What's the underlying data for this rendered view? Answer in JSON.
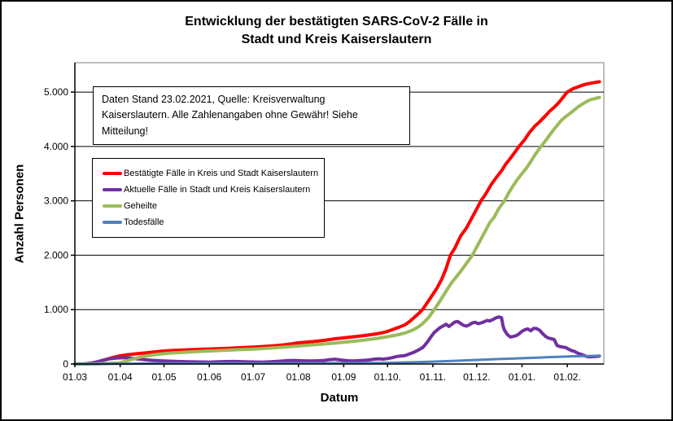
{
  "header": {
    "title_line1": "Entwicklung der bestätigten SARS-CoV-2 Fälle in",
    "title_line2": "Stadt und Kreis Kaiserslautern"
  },
  "infobox": {
    "line1": "Daten Stand 23.02.2021, Quelle: Kreisverwaltung",
    "line2": "Kaiserslautern. Alle Zahlenangaben ohne Gewähr! Siehe Mitteilung!"
  },
  "chart_data": {
    "type": "line",
    "title": "Entwicklung der bestätigten SARS-CoV-2 Fälle in Stadt und Kreis Kaiserslautern",
    "xlabel": "Datum",
    "ylabel": "Anzahl Personen",
    "x_unit": "days since 01.03.2020",
    "xlim": [
      0,
      362
    ],
    "ylim": [
      0,
      5540
    ],
    "grid": "horizontal",
    "legend_position": "inside-upper-left",
    "yticks": [
      {
        "value": 0,
        "label": "0"
      },
      {
        "value": 1000,
        "label": "1.000"
      },
      {
        "value": 2000,
        "label": "2.000"
      },
      {
        "value": 3000,
        "label": "3.000"
      },
      {
        "value": 4000,
        "label": "4.000"
      },
      {
        "value": 5000,
        "label": "5.000"
      }
    ],
    "xticks": [
      {
        "day": 0,
        "label": "01.03"
      },
      {
        "day": 31,
        "label": "01.04"
      },
      {
        "day": 61,
        "label": "01.05"
      },
      {
        "day": 92,
        "label": "01.06"
      },
      {
        "day": 122,
        "label": "01.07"
      },
      {
        "day": 153,
        "label": "01.08"
      },
      {
        "day": 184,
        "label": "01.09"
      },
      {
        "day": 214,
        "label": "01.10."
      },
      {
        "day": 245,
        "label": "01.11."
      },
      {
        "day": 275,
        "label": "01.12."
      },
      {
        "day": 306,
        "label": "01.01."
      },
      {
        "day": 337,
        "label": "01.02."
      }
    ],
    "series": [
      {
        "name": "Bestätigte Fälle in Kreis und Stadt Kaiserslautern",
        "color": "#FF0000",
        "width": 4,
        "points": [
          [
            0,
            0
          ],
          [
            6,
            2
          ],
          [
            10,
            8
          ],
          [
            14,
            25
          ],
          [
            18,
            60
          ],
          [
            22,
            90
          ],
          [
            26,
            118
          ],
          [
            31,
            150
          ],
          [
            36,
            170
          ],
          [
            41,
            185
          ],
          [
            47,
            200
          ],
          [
            54,
            222
          ],
          [
            61,
            240
          ],
          [
            68,
            250
          ],
          [
            75,
            258
          ],
          [
            82,
            266
          ],
          [
            92,
            276
          ],
          [
            99,
            283
          ],
          [
            106,
            291
          ],
          [
            113,
            300
          ],
          [
            122,
            311
          ],
          [
            129,
            322
          ],
          [
            136,
            336
          ],
          [
            143,
            352
          ],
          [
            148,
            370
          ],
          [
            153,
            390
          ],
          [
            158,
            401
          ],
          [
            164,
            416
          ],
          [
            171,
            436
          ],
          [
            177,
            460
          ],
          [
            184,
            481
          ],
          [
            191,
            502
          ],
          [
            198,
            523
          ],
          [
            205,
            548
          ],
          [
            210,
            572
          ],
          [
            214,
            600
          ],
          [
            218,
            638
          ],
          [
            222,
            678
          ],
          [
            226,
            722
          ],
          [
            229,
            780
          ],
          [
            232,
            850
          ],
          [
            235,
            922
          ],
          [
            238,
            1002
          ],
          [
            241,
            1120
          ],
          [
            245,
            1280
          ],
          [
            248,
            1405
          ],
          [
            251,
            1556
          ],
          [
            254,
            1752
          ],
          [
            257,
            2001
          ],
          [
            260,
            2130
          ],
          [
            264,
            2352
          ],
          [
            268,
            2502
          ],
          [
            271,
            2650
          ],
          [
            275,
            2851
          ],
          [
            278,
            3003
          ],
          [
            281,
            3120
          ],
          [
            285,
            3302
          ],
          [
            289,
            3450
          ],
          [
            292,
            3552
          ],
          [
            295,
            3680
          ],
          [
            298,
            3781
          ],
          [
            301,
            3890
          ],
          [
            304,
            4002
          ],
          [
            308,
            4131
          ],
          [
            311,
            4252
          ],
          [
            315,
            4380
          ],
          [
            318,
            4451
          ],
          [
            322,
            4562
          ],
          [
            325,
            4650
          ],
          [
            328,
            4721
          ],
          [
            331,
            4800
          ],
          [
            334,
            4901
          ],
          [
            337,
            5001
          ],
          [
            341,
            5062
          ],
          [
            345,
            5103
          ],
          [
            349,
            5140
          ],
          [
            353,
            5162
          ],
          [
            359,
            5190
          ]
        ]
      },
      {
        "name": "Aktuelle Fälle in Stadt und Kreis Kaiserslautern",
        "color": "#7030A0",
        "width": 4,
        "points": [
          [
            0,
            0
          ],
          [
            7,
            4
          ],
          [
            12,
            20
          ],
          [
            16,
            45
          ],
          [
            20,
            72
          ],
          [
            24,
            96
          ],
          [
            28,
            108
          ],
          [
            33,
            116
          ],
          [
            38,
            108
          ],
          [
            43,
            95
          ],
          [
            48,
            80
          ],
          [
            53,
            68
          ],
          [
            58,
            60
          ],
          [
            64,
            52
          ],
          [
            70,
            46
          ],
          [
            78,
            42
          ],
          [
            85,
            38
          ],
          [
            92,
            35
          ],
          [
            98,
            40
          ],
          [
            104,
            45
          ],
          [
            110,
            47
          ],
          [
            116,
            42
          ],
          [
            122,
            38
          ],
          [
            128,
            34
          ],
          [
            134,
            41
          ],
          [
            140,
            51
          ],
          [
            145,
            61
          ],
          [
            150,
            66
          ],
          [
            155,
            60
          ],
          [
            160,
            55
          ],
          [
            165,
            58
          ],
          [
            170,
            63
          ],
          [
            174,
            80
          ],
          [
            178,
            88
          ],
          [
            182,
            74
          ],
          [
            186,
            62
          ],
          [
            190,
            55
          ],
          [
            195,
            62
          ],
          [
            200,
            71
          ],
          [
            204,
            86
          ],
          [
            208,
            96
          ],
          [
            211,
            88
          ],
          [
            214,
            101
          ],
          [
            217,
            116
          ],
          [
            220,
            136
          ],
          [
            223,
            146
          ],
          [
            226,
            156
          ],
          [
            229,
            186
          ],
          [
            232,
            216
          ],
          [
            235,
            256
          ],
          [
            238,
            301
          ],
          [
            240,
            361
          ],
          [
            242,
            431
          ],
          [
            244,
            511
          ],
          [
            246,
            581
          ],
          [
            248,
            626
          ],
          [
            250,
            671
          ],
          [
            252,
            701
          ],
          [
            254,
            731
          ],
          [
            256,
            691
          ],
          [
            258,
            731
          ],
          [
            260,
            771
          ],
          [
            262,
            781
          ],
          [
            264,
            746
          ],
          [
            266,
            711
          ],
          [
            268,
            696
          ],
          [
            270,
            721
          ],
          [
            272,
            756
          ],
          [
            274,
            766
          ],
          [
            276,
            741
          ],
          [
            278,
            756
          ],
          [
            280,
            776
          ],
          [
            282,
            801
          ],
          [
            284,
            791
          ],
          [
            286,
            816
          ],
          [
            288,
            846
          ],
          [
            290,
            866
          ],
          [
            292,
            851
          ],
          [
            293,
            701
          ],
          [
            294,
            621
          ],
          [
            296,
            541
          ],
          [
            298,
            496
          ],
          [
            300,
            506
          ],
          [
            302,
            521
          ],
          [
            304,
            556
          ],
          [
            306,
            601
          ],
          [
            308,
            631
          ],
          [
            310,
            646
          ],
          [
            312,
            611
          ],
          [
            314,
            656
          ],
          [
            316,
            651
          ],
          [
            318,
            621
          ],
          [
            320,
            561
          ],
          [
            322,
            511
          ],
          [
            324,
            476
          ],
          [
            326,
            466
          ],
          [
            328,
            451
          ],
          [
            330,
            341
          ],
          [
            332,
            321
          ],
          [
            334,
            311
          ],
          [
            336,
            301
          ],
          [
            338,
            271
          ],
          [
            340,
            246
          ],
          [
            342,
            231
          ],
          [
            344,
            201
          ],
          [
            346,
            181
          ],
          [
            348,
            161
          ],
          [
            350,
            141
          ],
          [
            352,
            131
          ],
          [
            355,
            136
          ],
          [
            357,
            141
          ],
          [
            359,
            146
          ]
        ]
      },
      {
        "name": "Geheilte",
        "color": "#9BBB59",
        "width": 4,
        "points": [
          [
            0,
            0
          ],
          [
            14,
            2
          ],
          [
            22,
            10
          ],
          [
            31,
            20
          ],
          [
            36,
            62
          ],
          [
            41,
            101
          ],
          [
            47,
            140
          ],
          [
            54,
            171
          ],
          [
            61,
            191
          ],
          [
            68,
            205
          ],
          [
            75,
            216
          ],
          [
            82,
            226
          ],
          [
            92,
            240
          ],
          [
            102,
            252
          ],
          [
            112,
            263
          ],
          [
            122,
            273
          ],
          [
            130,
            286
          ],
          [
            138,
            301
          ],
          [
            146,
            316
          ],
          [
            153,
            331
          ],
          [
            160,
            346
          ],
          [
            168,
            363
          ],
          [
            176,
            381
          ],
          [
            184,
            401
          ],
          [
            192,
            421
          ],
          [
            200,
            446
          ],
          [
            207,
            471
          ],
          [
            214,
            501
          ],
          [
            220,
            531
          ],
          [
            226,
            571
          ],
          [
            231,
            621
          ],
          [
            235,
            681
          ],
          [
            238,
            741
          ],
          [
            242,
            851
          ],
          [
            246,
            1001
          ],
          [
            249,
            1121
          ],
          [
            252,
            1251
          ],
          [
            255,
            1381
          ],
          [
            258,
            1501
          ],
          [
            261,
            1601
          ],
          [
            264,
            1701
          ],
          [
            268,
            1851
          ],
          [
            272,
            2001
          ],
          [
            276,
            2201
          ],
          [
            280,
            2401
          ],
          [
            284,
            2601
          ],
          [
            287,
            2701
          ],
          [
            290,
            2851
          ],
          [
            294,
            3001
          ],
          [
            297,
            3151
          ],
          [
            300,
            3281
          ],
          [
            303,
            3401
          ],
          [
            306,
            3501
          ],
          [
            309,
            3601
          ],
          [
            312,
            3721
          ],
          [
            315,
            3851
          ],
          [
            319,
            4001
          ],
          [
            322,
            4101
          ],
          [
            326,
            4251
          ],
          [
            329,
            4351
          ],
          [
            333,
            4481
          ],
          [
            336,
            4551
          ],
          [
            340,
            4631
          ],
          [
            344,
            4721
          ],
          [
            348,
            4791
          ],
          [
            352,
            4851
          ],
          [
            356,
            4881
          ],
          [
            359,
            4901
          ]
        ]
      },
      {
        "name": "Todesfälle",
        "color": "#4F81BD",
        "width": 3,
        "points": [
          [
            0,
            0
          ],
          [
            20,
            1
          ],
          [
            31,
            3
          ],
          [
            40,
            6
          ],
          [
            50,
            9
          ],
          [
            61,
            11
          ],
          [
            75,
            12
          ],
          [
            92,
            13
          ],
          [
            110,
            13
          ],
          [
            122,
            14
          ],
          [
            140,
            14
          ],
          [
            153,
            15
          ],
          [
            170,
            15
          ],
          [
            184,
            16
          ],
          [
            200,
            18
          ],
          [
            214,
            21
          ],
          [
            222,
            25
          ],
          [
            230,
            31
          ],
          [
            238,
            37
          ],
          [
            245,
            43
          ],
          [
            252,
            51
          ],
          [
            260,
            59
          ],
          [
            268,
            67
          ],
          [
            275,
            75
          ],
          [
            282,
            83
          ],
          [
            290,
            91
          ],
          [
            297,
            98
          ],
          [
            304,
            105
          ],
          [
            310,
            111
          ],
          [
            316,
            117
          ],
          [
            322,
            123
          ],
          [
            328,
            129
          ],
          [
            334,
            135
          ],
          [
            340,
            140
          ],
          [
            346,
            144
          ],
          [
            351,
            147
          ],
          [
            355,
            149
          ],
          [
            359,
            151
          ]
        ]
      }
    ]
  }
}
